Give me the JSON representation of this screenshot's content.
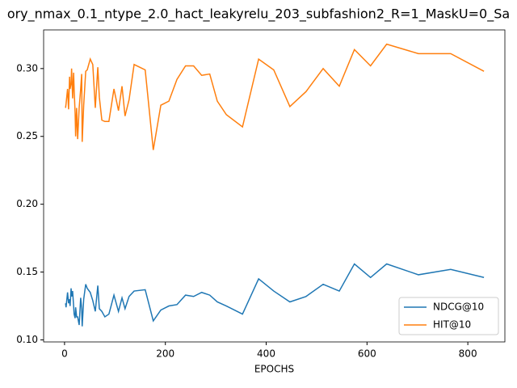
{
  "chart_data": {
    "type": "line",
    "title": "ory_nmax_0.1_ntype_2.0_hact_leakyrelu_203_subfashion2_R=1_MaskU=0_Sa",
    "x_label": "EPOCHS",
    "x": [
      2,
      3,
      6,
      8,
      10,
      11,
      13,
      14,
      16,
      18,
      19,
      21,
      22,
      24,
      26,
      29,
      32,
      34,
      35,
      38,
      42,
      45,
      51,
      56,
      61,
      66,
      69,
      74,
      80,
      88,
      98,
      107,
      114,
      120,
      128,
      138,
      160,
      176,
      191,
      207,
      223,
      240,
      256,
      272,
      288,
      303,
      321,
      353,
      385,
      415,
      447,
      479,
      513,
      545,
      575,
      607,
      639,
      702,
      766,
      832
    ],
    "series": [
      {
        "name": "NDCG@10",
        "color": "#1f77b4",
        "values": [
          0.127,
          0.124,
          0.135,
          0.127,
          0.13,
          0.125,
          0.138,
          0.132,
          0.136,
          0.125,
          0.119,
          0.116,
          0.124,
          0.117,
          0.117,
          0.111,
          0.131,
          0.123,
          0.11,
          0.13,
          0.141,
          0.138,
          0.135,
          0.129,
          0.121,
          0.14,
          0.123,
          0.121,
          0.117,
          0.119,
          0.133,
          0.121,
          0.131,
          0.123,
          0.132,
          0.136,
          0.137,
          0.114,
          0.122,
          0.125,
          0.126,
          0.133,
          0.132,
          0.135,
          0.133,
          0.128,
          0.125,
          0.119,
          0.145,
          0.136,
          0.128,
          0.132,
          0.141,
          0.136,
          0.156,
          0.146,
          0.156,
          0.148,
          0.152,
          0.146
        ]
      },
      {
        "name": "HIT@10",
        "color": "#ff7f0e",
        "values": [
          0.271,
          0.274,
          0.285,
          0.27,
          0.294,
          0.285,
          0.289,
          0.3,
          0.278,
          0.297,
          0.285,
          0.267,
          0.25,
          0.271,
          0.248,
          0.271,
          0.285,
          0.296,
          0.246,
          0.273,
          0.298,
          0.299,
          0.307,
          0.303,
          0.271,
          0.301,
          0.279,
          0.262,
          0.261,
          0.261,
          0.285,
          0.269,
          0.287,
          0.265,
          0.277,
          0.303,
          0.299,
          0.24,
          0.273,
          0.276,
          0.292,
          0.302,
          0.302,
          0.295,
          0.296,
          0.276,
          0.266,
          0.257,
          0.307,
          0.299,
          0.272,
          0.283,
          0.3,
          0.287,
          0.314,
          0.302,
          0.318,
          0.311,
          0.311,
          0.298
        ]
      }
    ],
    "xlim": [
      -41.5,
      873.5
    ],
    "xticks": [
      0,
      200,
      400,
      600,
      800
    ],
    "ylim": [
      0.0985,
      0.3285
    ],
    "yticks": [
      {
        "value": 0.1,
        "label": "0.10"
      },
      {
        "value": 0.15,
        "label": "0.15"
      },
      {
        "value": 0.2,
        "label": "0.20"
      },
      {
        "value": 0.25,
        "label": "0.25"
      },
      {
        "value": 0.3,
        "label": "0.30"
      }
    ],
    "legend": "lower right"
  }
}
